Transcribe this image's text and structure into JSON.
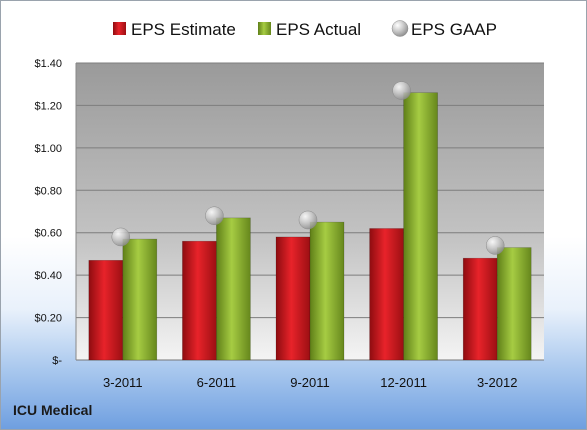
{
  "company": "ICU Medical",
  "chart_data": {
    "type": "bar",
    "categories": [
      "3-2011",
      "6-2011",
      "9-2011",
      "12-2011",
      "3-2012"
    ],
    "series": [
      {
        "name": "EPS Estimate",
        "values": [
          0.47,
          0.56,
          0.58,
          0.62,
          0.48
        ],
        "color": "#d0161b",
        "mark": "bar"
      },
      {
        "name": "EPS Actual",
        "values": [
          0.57,
          0.67,
          0.65,
          1.26,
          0.53
        ],
        "color": "#8fb52d",
        "mark": "bar"
      },
      {
        "name": "EPS GAAP",
        "values": [
          0.58,
          0.68,
          0.66,
          1.27,
          0.54
        ],
        "color": "#b9b9b9",
        "mark": "marker"
      }
    ],
    "yticks": [
      "$-",
      "$0.20",
      "$0.40",
      "$0.60",
      "$0.80",
      "$1.00",
      "$1.20",
      "$1.40"
    ],
    "ylim": [
      0,
      1.4
    ],
    "grid": true,
    "legend": "top"
  }
}
